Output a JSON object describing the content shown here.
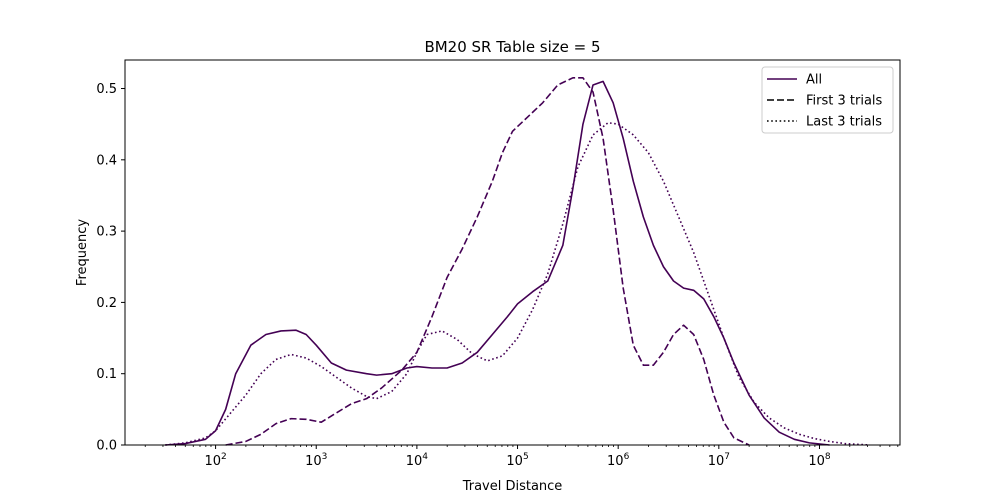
{
  "chart_data": {
    "type": "line",
    "title": "BM20 SR Table size = 5",
    "xlabel": "Travel Distance",
    "ylabel": "Frequency",
    "xscale": "log",
    "xlim_log10": [
      1.1,
      8.8
    ],
    "ylim": [
      0,
      0.54
    ],
    "xticks": [
      {
        "base": "10",
        "exp": "2",
        "log10": 2
      },
      {
        "base": "10",
        "exp": "3",
        "log10": 3
      },
      {
        "base": "10",
        "exp": "4",
        "log10": 4
      },
      {
        "base": "10",
        "exp": "5",
        "log10": 5
      },
      {
        "base": "10",
        "exp": "6",
        "log10": 6
      },
      {
        "base": "10",
        "exp": "7",
        "log10": 7
      },
      {
        "base": "10",
        "exp": "8",
        "log10": 8
      }
    ],
    "yticks": [
      {
        "label": "0.0",
        "value": 0.0
      },
      {
        "label": "0.1",
        "value": 0.1
      },
      {
        "label": "0.2",
        "value": 0.2
      },
      {
        "label": "0.3",
        "value": 0.3
      },
      {
        "label": "0.4",
        "value": 0.4
      },
      {
        "label": "0.5",
        "value": 0.5
      }
    ],
    "grid": false,
    "legend_position": "top-right",
    "color": "#440154",
    "series": [
      {
        "name": "All",
        "style": "solid",
        "points_log10x": [
          [
            1.5,
            0.0
          ],
          [
            1.7,
            0.002
          ],
          [
            1.9,
            0.008
          ],
          [
            2.0,
            0.02
          ],
          [
            2.1,
            0.05
          ],
          [
            2.2,
            0.1
          ],
          [
            2.35,
            0.14
          ],
          [
            2.5,
            0.155
          ],
          [
            2.65,
            0.16
          ],
          [
            2.8,
            0.161
          ],
          [
            2.9,
            0.155
          ],
          [
            3.0,
            0.14
          ],
          [
            3.15,
            0.115
          ],
          [
            3.3,
            0.105
          ],
          [
            3.5,
            0.1
          ],
          [
            3.6,
            0.098
          ],
          [
            3.75,
            0.1
          ],
          [
            3.9,
            0.108
          ],
          [
            4.0,
            0.11
          ],
          [
            4.15,
            0.108
          ],
          [
            4.3,
            0.108
          ],
          [
            4.45,
            0.115
          ],
          [
            4.6,
            0.13
          ],
          [
            4.75,
            0.155
          ],
          [
            4.9,
            0.18
          ],
          [
            5.0,
            0.198
          ],
          [
            5.15,
            0.215
          ],
          [
            5.3,
            0.23
          ],
          [
            5.45,
            0.28
          ],
          [
            5.55,
            0.36
          ],
          [
            5.65,
            0.45
          ],
          [
            5.75,
            0.505
          ],
          [
            5.85,
            0.51
          ],
          [
            5.95,
            0.48
          ],
          [
            6.05,
            0.43
          ],
          [
            6.15,
            0.37
          ],
          [
            6.25,
            0.32
          ],
          [
            6.35,
            0.28
          ],
          [
            6.45,
            0.25
          ],
          [
            6.55,
            0.23
          ],
          [
            6.65,
            0.22
          ],
          [
            6.75,
            0.217
          ],
          [
            6.85,
            0.205
          ],
          [
            6.95,
            0.18
          ],
          [
            7.05,
            0.15
          ],
          [
            7.15,
            0.115
          ],
          [
            7.3,
            0.07
          ],
          [
            7.45,
            0.038
          ],
          [
            7.6,
            0.018
          ],
          [
            7.75,
            0.008
          ],
          [
            7.9,
            0.003
          ],
          [
            8.1,
            0.0
          ]
        ]
      },
      {
        "name": "First 3 trials",
        "style": "dashed",
        "points_log10x": [
          [
            2.1,
            0.0
          ],
          [
            2.3,
            0.005
          ],
          [
            2.45,
            0.015
          ],
          [
            2.6,
            0.03
          ],
          [
            2.75,
            0.037
          ],
          [
            2.9,
            0.036
          ],
          [
            3.05,
            0.032
          ],
          [
            3.2,
            0.045
          ],
          [
            3.35,
            0.058
          ],
          [
            3.5,
            0.065
          ],
          [
            3.65,
            0.08
          ],
          [
            3.85,
            0.105
          ],
          [
            4.0,
            0.13
          ],
          [
            4.15,
            0.18
          ],
          [
            4.3,
            0.235
          ],
          [
            4.45,
            0.275
          ],
          [
            4.6,
            0.32
          ],
          [
            4.75,
            0.37
          ],
          [
            4.85,
            0.41
          ],
          [
            4.95,
            0.44
          ],
          [
            5.1,
            0.46
          ],
          [
            5.25,
            0.48
          ],
          [
            5.4,
            0.505
          ],
          [
            5.55,
            0.515
          ],
          [
            5.65,
            0.515
          ],
          [
            5.75,
            0.495
          ],
          [
            5.85,
            0.43
          ],
          [
            5.95,
            0.33
          ],
          [
            6.05,
            0.22
          ],
          [
            6.15,
            0.14
          ],
          [
            6.25,
            0.112
          ],
          [
            6.35,
            0.112
          ],
          [
            6.45,
            0.13
          ],
          [
            6.55,
            0.155
          ],
          [
            6.65,
            0.168
          ],
          [
            6.75,
            0.155
          ],
          [
            6.85,
            0.12
          ],
          [
            6.95,
            0.07
          ],
          [
            7.05,
            0.032
          ],
          [
            7.15,
            0.01
          ],
          [
            7.3,
            0.0
          ]
        ]
      },
      {
        "name": "Last 3 trials",
        "style": "dotted",
        "points_log10x": [
          [
            1.5,
            0.0
          ],
          [
            1.7,
            0.003
          ],
          [
            1.9,
            0.01
          ],
          [
            2.0,
            0.02
          ],
          [
            2.15,
            0.045
          ],
          [
            2.3,
            0.07
          ],
          [
            2.45,
            0.1
          ],
          [
            2.6,
            0.12
          ],
          [
            2.75,
            0.127
          ],
          [
            2.9,
            0.122
          ],
          [
            3.05,
            0.11
          ],
          [
            3.2,
            0.095
          ],
          [
            3.35,
            0.08
          ],
          [
            3.5,
            0.068
          ],
          [
            3.6,
            0.065
          ],
          [
            3.75,
            0.075
          ],
          [
            3.9,
            0.1
          ],
          [
            4.0,
            0.13
          ],
          [
            4.1,
            0.155
          ],
          [
            4.25,
            0.16
          ],
          [
            4.4,
            0.148
          ],
          [
            4.55,
            0.128
          ],
          [
            4.7,
            0.118
          ],
          [
            4.85,
            0.125
          ],
          [
            5.0,
            0.15
          ],
          [
            5.15,
            0.19
          ],
          [
            5.3,
            0.24
          ],
          [
            5.45,
            0.31
          ],
          [
            5.6,
            0.39
          ],
          [
            5.75,
            0.435
          ],
          [
            5.9,
            0.452
          ],
          [
            6.0,
            0.45
          ],
          [
            6.15,
            0.435
          ],
          [
            6.3,
            0.41
          ],
          [
            6.45,
            0.37
          ],
          [
            6.6,
            0.32
          ],
          [
            6.75,
            0.27
          ],
          [
            6.9,
            0.21
          ],
          [
            7.05,
            0.15
          ],
          [
            7.2,
            0.095
          ],
          [
            7.35,
            0.06
          ],
          [
            7.5,
            0.038
          ],
          [
            7.65,
            0.024
          ],
          [
            7.8,
            0.015
          ],
          [
            7.95,
            0.009
          ],
          [
            8.1,
            0.005
          ],
          [
            8.25,
            0.002
          ],
          [
            8.5,
            0.0
          ]
        ]
      }
    ]
  }
}
